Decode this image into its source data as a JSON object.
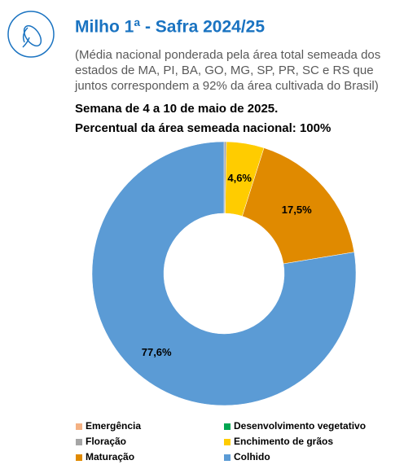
{
  "chart_data": {
    "type": "donut",
    "title": "Milho 1ª - Safra 2024/25",
    "subtitle": [
      "(Média nacional ponderada pela área total semeada dos",
      "estados de MA, PI, BA, GO, MG, SP, PR, SC e RS que",
      "juntos correspondem a 92% da área cultivada do Brasil)"
    ],
    "headings": [
      "Semana de 4 a 10 de maio de 2025.",
      "Percentual da área semeada nacional: 100%"
    ],
    "categories": [
      "Emergência",
      "Desenvolvimento vegetativo",
      "Floração",
      "Enchimento de grãos",
      "Maturação",
      "Colhido"
    ],
    "values": [
      0,
      0,
      0.3,
      4.6,
      17.5,
      77.6
    ],
    "value_labels": [
      null,
      null,
      null,
      "4,6%",
      "17,5%",
      "77,6%"
    ],
    "colors": [
      "#f4b183",
      "#00a651",
      "#a5a5a5",
      "#ffcc00",
      "#e08a00",
      "#5b9bd5"
    ]
  }
}
